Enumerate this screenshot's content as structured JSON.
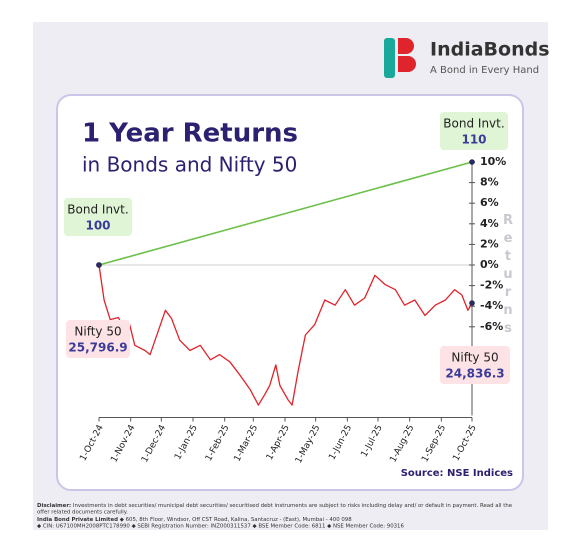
{
  "brand": {
    "name": "IndiaBonds",
    "tagline": "A Bond in Every Hand"
  },
  "chart_data": {
    "type": "line",
    "title": "1 Year Returns",
    "subtitle": "in Bonds and Nifty 50",
    "y_label": "Returns",
    "source": "Source: NSE Indices",
    "xlim": [
      "2024-10-01",
      "2025-10-01"
    ],
    "xticks": [
      {
        "value": "2024-10-01",
        "label": "1-Oct-24"
      },
      {
        "value": "2024-11-01",
        "label": "1-Nov-24"
      },
      {
        "value": "2024-12-01",
        "label": "1-Dec-24"
      },
      {
        "value": "2025-01-01",
        "label": "1-Jan-25"
      },
      {
        "value": "2025-02-01",
        "label": "1-Feb-25"
      },
      {
        "value": "2025-03-01",
        "label": "1-Mar-25"
      },
      {
        "value": "2025-04-01",
        "label": "1-Apr-25"
      },
      {
        "value": "2025-05-01",
        "label": "1-May-25"
      },
      {
        "value": "2025-06-01",
        "label": "1-Jun-25"
      },
      {
        "value": "2025-07-01",
        "label": "1-Jul-25"
      },
      {
        "value": "2025-08-01",
        "label": "1-Aug-25"
      },
      {
        "value": "2025-09-01",
        "label": "1-Sep-25"
      },
      {
        "value": "2025-10-01",
        "label": "1-Oct-25"
      }
    ],
    "ylim": [
      -15,
      10
    ],
    "yticks": [
      {
        "value": 10,
        "label": "10%"
      },
      {
        "value": 8,
        "label": "8%"
      },
      {
        "value": 6,
        "label": "6%"
      },
      {
        "value": 4,
        "label": "4%"
      },
      {
        "value": 2,
        "label": "2%"
      },
      {
        "value": 0,
        "label": "0%"
      },
      {
        "value": -2,
        "label": "-2%"
      },
      {
        "value": -4,
        "label": "-4%"
      },
      {
        "value": -6,
        "label": "-6%"
      }
    ],
    "series": [
      {
        "name": "Bond Invt.",
        "color": "#6cc04a",
        "x": [
          "2024-10-01",
          "2025-10-01"
        ],
        "values": [
          0,
          10
        ]
      },
      {
        "name": "Nifty 50",
        "color": "#e0242b",
        "x": [
          "2024-10-01",
          "2024-10-06",
          "2024-10-12",
          "2024-10-20",
          "2024-10-26",
          "2024-10-31",
          "2024-11-05",
          "2024-11-15",
          "2024-11-20",
          "2024-12-05",
          "2024-12-11",
          "2024-12-19",
          "2024-12-29",
          "2025-01-08",
          "2025-01-18",
          "2025-01-27",
          "2025-02-06",
          "2025-02-16",
          "2025-02-26",
          "2025-03-06",
          "2025-03-12",
          "2025-03-17",
          "2025-03-23",
          "2025-03-27",
          "2025-04-04",
          "2025-04-08",
          "2025-04-14",
          "2025-04-21",
          "2025-04-30",
          "2025-05-10",
          "2025-05-20",
          "2025-05-30",
          "2025-06-08",
          "2025-06-18",
          "2025-06-28",
          "2025-07-08",
          "2025-07-18",
          "2025-07-27",
          "2025-08-06",
          "2025-08-16",
          "2025-08-26",
          "2025-09-05",
          "2025-09-14",
          "2025-09-21",
          "2025-09-27",
          "2025-10-01"
        ],
        "values": [
          0,
          -3.4,
          -5.3,
          -5.1,
          -6.3,
          -5.8,
          -7.8,
          -8.3,
          -8.7,
          -4.4,
          -5.2,
          -7.3,
          -8.3,
          -7.8,
          -9.2,
          -8.7,
          -9.4,
          -10.7,
          -12.1,
          -13.6,
          -12.6,
          -11.7,
          -9.7,
          -11.7,
          -13.1,
          -13.6,
          -10.2,
          -6.8,
          -5.8,
          -3.4,
          -3.9,
          -2.4,
          -3.9,
          -3.2,
          -1.0,
          -1.9,
          -2.4,
          -3.9,
          -3.4,
          -4.9,
          -3.9,
          -3.4,
          -2.4,
          -2.9,
          -4.4,
          -3.7
        ]
      }
    ],
    "annotations": [
      {
        "label": "Bond Invt.",
        "value": "100"
      },
      {
        "label": "Nifty 50",
        "value": "25,796.9"
      },
      {
        "label": "Bond Invt.",
        "value": "110"
      },
      {
        "label": "Nifty 50",
        "value": "24,836.3"
      }
    ]
  },
  "footer": {
    "disclaimer_label": "Disclaimer:",
    "disclaimer": "Investments in debt securities/ municipal debt securities/ securitised debt instruments are subject to risks including delay and/ or default in payment. Read all the",
    "disclaimer_2": "offer related documents carefully.",
    "company": "India Bond Private Limited",
    "address": "◆ 605, 8th Floor, Windsor, Off CST Road, Kalina, Santacruz - (East), Mumbai - 400 098",
    "registration": "◆ CIN: U67100MH2008PTC178990   ◆ SEBI Registration Number: INZ000311537   ◆ BSE Member Code: 6811   ◆ NSE Member Code: 90316"
  }
}
